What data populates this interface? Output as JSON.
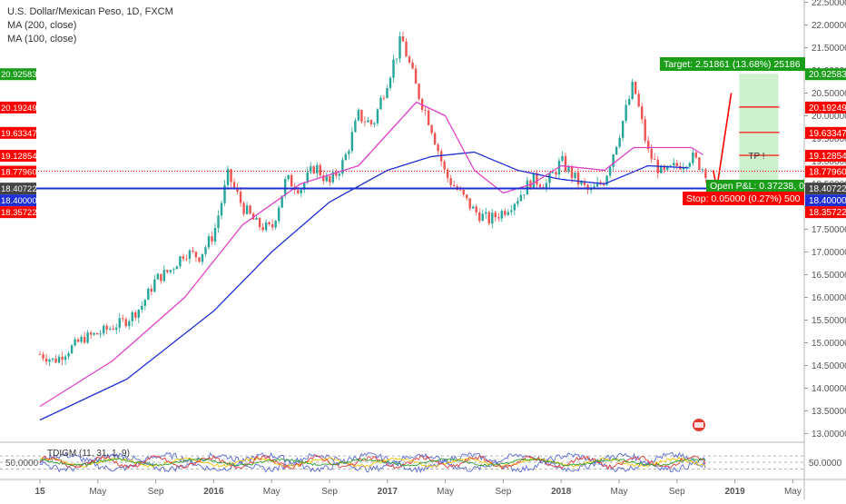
{
  "legend": {
    "title": "U.S. Dollar/Mexican Peso, 1D, FXCM",
    "ma200": "MA (200, close)",
    "ma100": "MA (100, close)"
  },
  "colors": {
    "up": "#26a69a",
    "down": "#ef5350",
    "ma200": "#1f2fd6",
    "ma100": "#e040c8",
    "entry": "#1f2fd6",
    "tp_line": "#ff0000",
    "target_zone": "#c8efc8",
    "label_red": "#ff0000",
    "label_green": "#1a9e1a",
    "label_blue": "#1f2fd6",
    "label_gray": "#444444"
  },
  "indicator": {
    "label": "TDIGM (11, 31, 1, 9)",
    "value_label": "50.0000"
  },
  "chart_data": {
    "type": "candlestick",
    "title": "U.S. Dollar/Mexican Peso, 1D, FXCM",
    "ylim": [
      12.85,
      22.55
    ],
    "y_ticks": [
      "13.00000",
      "13.50000",
      "14.00000",
      "14.50000",
      "15.00000",
      "15.50000",
      "16.00000",
      "16.50000",
      "17.00000",
      "17.50000",
      "18.00000",
      "18.50000",
      "19.00000",
      "19.50000",
      "20.00000",
      "20.50000",
      "21.00000",
      "21.50000",
      "22.00000",
      "22.50000"
    ],
    "y_tick_values": [
      13.0,
      13.5,
      14.0,
      14.5,
      15.0,
      15.5,
      16.0,
      16.5,
      17.0,
      17.5,
      18.0,
      18.5,
      19.0,
      19.5,
      20.0,
      20.5,
      21.0,
      21.5,
      22.0,
      22.5
    ],
    "x_ticks": [
      "15",
      "May",
      "Sep",
      "2016",
      "May",
      "Sep",
      "2017",
      "May",
      "Sep",
      "2018",
      "May",
      "Sep",
      "2019",
      "May"
    ],
    "x_tick_months": [
      0,
      4,
      8,
      12,
      16,
      20,
      24,
      28,
      32,
      36,
      40,
      44,
      48,
      52
    ],
    "price_path": [
      [
        0,
        14.75
      ],
      [
        1,
        14.6
      ],
      [
        3,
        15.1
      ],
      [
        4,
        15.2
      ],
      [
        6,
        15.5
      ],
      [
        7,
        15.8
      ],
      [
        8,
        16.4
      ],
      [
        9,
        16.6
      ],
      [
        10,
        17.0
      ],
      [
        11,
        16.9
      ],
      [
        12,
        17.4
      ],
      [
        13,
        18.7
      ],
      [
        14,
        18.0
      ],
      [
        15,
        17.6
      ],
      [
        16,
        17.5
      ],
      [
        17,
        18.6
      ],
      [
        18,
        18.4
      ],
      [
        19,
        18.9
      ],
      [
        20,
        18.5
      ],
      [
        21,
        19.0
      ],
      [
        22,
        20.0
      ],
      [
        23,
        19.8
      ],
      [
        24,
        20.8
      ],
      [
        25,
        21.7
      ],
      [
        26,
        20.6
      ],
      [
        27,
        19.8
      ],
      [
        28,
        18.7
      ],
      [
        29,
        18.3
      ],
      [
        30,
        17.9
      ],
      [
        31,
        17.7
      ],
      [
        32,
        17.9
      ],
      [
        33,
        18.2
      ],
      [
        34,
        18.6
      ],
      [
        35,
        18.5
      ],
      [
        36,
        19.0
      ],
      [
        37,
        18.6
      ],
      [
        38,
        18.3
      ],
      [
        39,
        18.6
      ],
      [
        40,
        19.6
      ],
      [
        41,
        20.7
      ],
      [
        42,
        19.2
      ],
      [
        43,
        18.7
      ],
      [
        44,
        18.9
      ],
      [
        45,
        19.1
      ],
      [
        46,
        18.78
      ]
    ],
    "ma200_path": [
      [
        0,
        13.3
      ],
      [
        6,
        14.2
      ],
      [
        12,
        15.7
      ],
      [
        16,
        17.0
      ],
      [
        20,
        18.1
      ],
      [
        24,
        18.8
      ],
      [
        27,
        19.1
      ],
      [
        30,
        19.2
      ],
      [
        33,
        18.8
      ],
      [
        36,
        18.6
      ],
      [
        39,
        18.5
      ],
      [
        42,
        18.9
      ],
      [
        45,
        18.85
      ]
    ],
    "ma100_path": [
      [
        0,
        13.6
      ],
      [
        5,
        14.6
      ],
      [
        10,
        16.0
      ],
      [
        14,
        17.6
      ],
      [
        18,
        18.5
      ],
      [
        22,
        18.9
      ],
      [
        24,
        19.6
      ],
      [
        26,
        20.3
      ],
      [
        28,
        20.0
      ],
      [
        30,
        18.8
      ],
      [
        32,
        18.3
      ],
      [
        34,
        18.5
      ],
      [
        36,
        18.9
      ],
      [
        39,
        18.8
      ],
      [
        41,
        19.3
      ],
      [
        43,
        19.3
      ],
      [
        45,
        19.3
      ],
      [
        46,
        19.1
      ]
    ],
    "projection": {
      "from": [
        46,
        18.4
      ],
      "to": [
        48,
        20.5
      ]
    },
    "entry_line": 18.4,
    "current_price_line": 18.7796,
    "target_zone": {
      "from_month": 48.3,
      "to_month": 51.0,
      "low": 18.4,
      "high": 20.92583
    },
    "tp_lines": [
      20.19249,
      19.63347,
      19.12854
    ],
    "tp_text": "TP !",
    "price_labels": [
      {
        "value": 20.92583,
        "text": "20.92583",
        "color": "green"
      },
      {
        "value": 20.19249,
        "text": "20.19249",
        "color": "red"
      },
      {
        "value": 19.63347,
        "text": "19.63347",
        "color": "red"
      },
      {
        "value": 19.12854,
        "text": "19.12854",
        "color": "red"
      },
      {
        "value": 18.7796,
        "text": "18.77960",
        "color": "red"
      },
      {
        "value": 18.4,
        "text": "18.40000",
        "color": "blue"
      },
      {
        "value": 18.40722,
        "text": "18.40722",
        "color": "gray"
      },
      {
        "value": 18.35722,
        "text": "18.35722",
        "color": "red"
      }
    ],
    "annotations": {
      "target": "Target: 2.51861 (13.68%) 25186",
      "open_pl": "Open P&L: 0.37238, 0",
      "stop": "Stop: 0.05000 (0.27%) 500"
    }
  }
}
